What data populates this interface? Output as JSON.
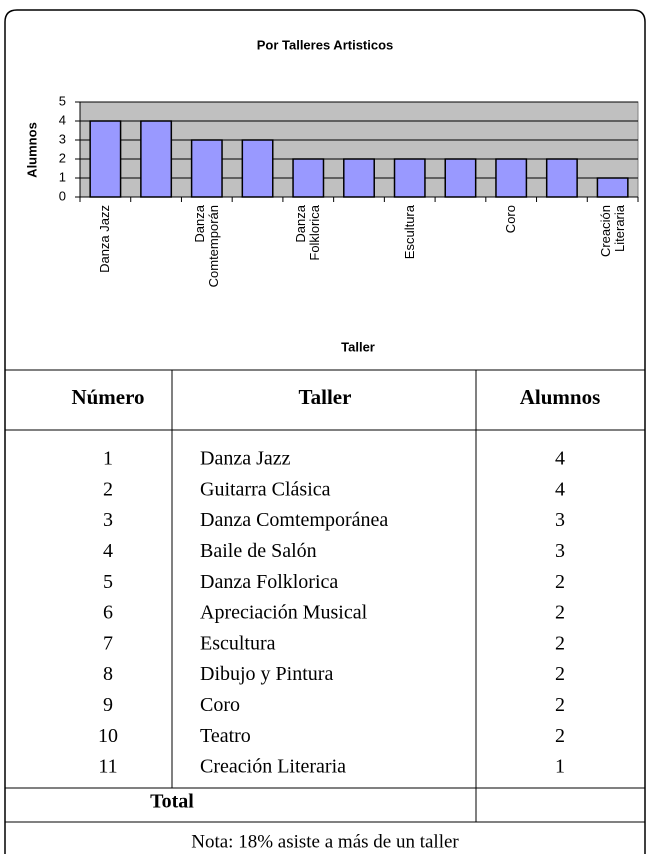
{
  "chart_data": {
    "type": "bar",
    "title": "Por Talleres Artisticos",
    "y_label": "Alumnos",
    "x_label": "Taller",
    "categories": [
      "Danza Jazz",
      null,
      "Danza Comtemporán",
      null,
      "Danza Folklorica",
      null,
      "Escultura",
      null,
      "Coro",
      null,
      "Creación Literaria"
    ],
    "values": [
      4,
      4,
      3,
      3,
      2,
      2,
      2,
      2,
      2,
      2,
      1
    ],
    "color": "#9999ff",
    "background": "#c0c0c0",
    "ylim": [
      0,
      5
    ],
    "yticks": [
      0,
      1,
      2,
      3,
      4,
      5
    ],
    "grid": true
  },
  "table": {
    "header": [
      "Número",
      "Taller",
      "Alumnos"
    ],
    "rows": [
      [
        "1",
        "Danza Jazz",
        "4"
      ],
      [
        "2",
        "Guitarra Clásica",
        "4"
      ],
      [
        "3",
        "Danza Comtemporánea",
        "3"
      ],
      [
        "4",
        "Baile de Salón",
        "3"
      ],
      [
        "5",
        "Danza Folklorica",
        "2"
      ],
      [
        "6",
        "Apreciación Musical",
        "2"
      ],
      [
        "7",
        "Escultura",
        "2"
      ],
      [
        "8",
        "Dibujo y Pintura",
        "2"
      ],
      [
        "9",
        "Coro",
        "2"
      ],
      [
        "10",
        "Teatro",
        "2"
      ],
      [
        "11",
        "Creación Literaria",
        "1"
      ]
    ],
    "total_label": "Total",
    "note": "Nota: 18% asiste a más de un taller"
  }
}
